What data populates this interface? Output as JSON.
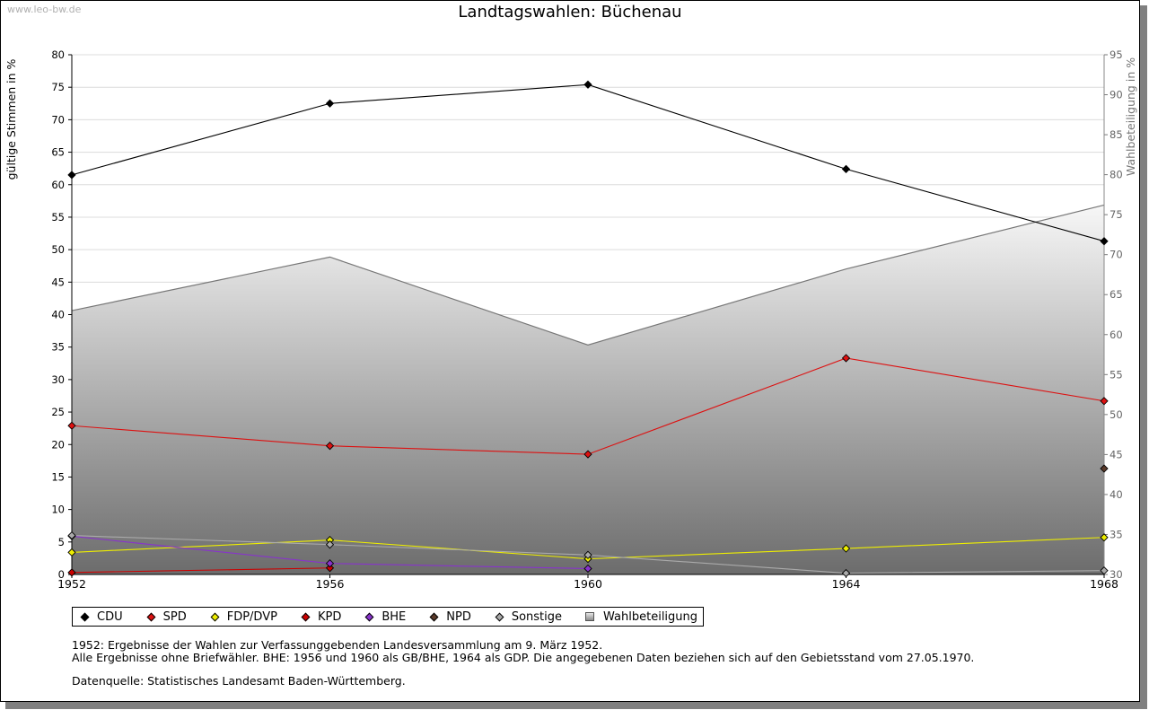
{
  "watermark": "www.leo-bw.de",
  "chart_data": {
    "type": "line",
    "title": "Landtagswahlen: Büchenau",
    "ylabel": "gültige Stimmen in %",
    "y2label": "Wahlbeteiligung in %",
    "categories": [
      "1952",
      "1956",
      "1960",
      "1964",
      "1968"
    ],
    "ylim": [
      0,
      80
    ],
    "yticks": [
      0,
      5,
      10,
      15,
      20,
      25,
      30,
      35,
      40,
      45,
      50,
      55,
      60,
      65,
      70,
      75,
      80
    ],
    "y2lim": [
      30,
      95
    ],
    "y2ticks": [
      30,
      35,
      40,
      45,
      50,
      55,
      60,
      65,
      70,
      75,
      80,
      85,
      90,
      95
    ],
    "grid": true,
    "series": [
      {
        "name": "CDU",
        "color": "#000000",
        "values": [
          61.5,
          72.5,
          75.4,
          62.4,
          51.3
        ]
      },
      {
        "name": "SPD",
        "color": "#dd1111",
        "values": [
          22.9,
          19.8,
          18.5,
          33.3,
          26.7
        ]
      },
      {
        "name": "FDP/DVP",
        "color": "#eeee00",
        "values": [
          3.4,
          5.3,
          2.4,
          4.0,
          5.7
        ]
      },
      {
        "name": "KPD",
        "color": "#cc0000",
        "values": [
          0.3,
          1.0,
          null,
          null,
          null
        ]
      },
      {
        "name": "BHE",
        "color": "#8833cc",
        "values": [
          5.9,
          1.7,
          0.9,
          null,
          null
        ]
      },
      {
        "name": "NPD",
        "color": "#5a3a2a",
        "values": [
          null,
          null,
          null,
          null,
          16.3
        ]
      },
      {
        "name": "Sonstige",
        "color": "#aaaaaa",
        "values": [
          6.0,
          4.6,
          3.0,
          0.2,
          0.6
        ]
      }
    ],
    "turnout": {
      "name": "Wahlbeteiligung",
      "axis": "right",
      "values": [
        63.0,
        69.7,
        58.7,
        68.2,
        76.2
      ]
    },
    "legend_position": "bottom"
  },
  "notes": {
    "line1": "1952: Ergebnisse der Wahlen zur Verfassunggebenden Landesversammlung am 9. März 1952.",
    "line2": "Alle Ergebnisse ohne Briefwähler. BHE: 1956 und 1960 als GB/BHE, 1964 als GDP. Die angegebenen Daten beziehen sich auf den Gebietsstand vom 27.05.1970.",
    "source": "Datenquelle: Statistisches Landesamt Baden-Württemberg."
  }
}
